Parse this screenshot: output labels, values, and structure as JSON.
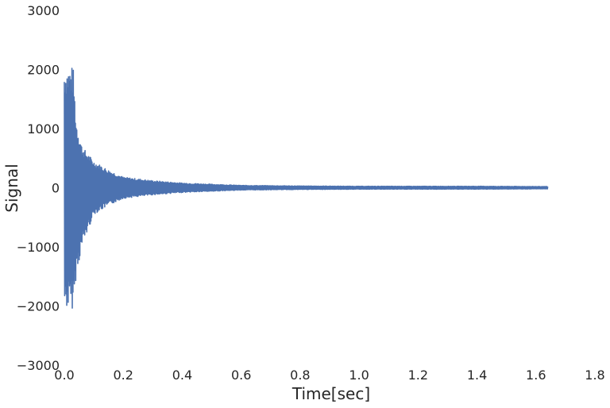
{
  "chart_data": {
    "type": "line",
    "title": "",
    "xlabel": "Time[sec]",
    "ylabel": "Signal",
    "xlim": [
      0.0,
      1.8
    ],
    "ylim": [
      -3000,
      3000
    ],
    "x_ticks": [
      "0.0",
      "0.2",
      "0.4",
      "0.6",
      "0.8",
      "1.0",
      "1.2",
      "1.4",
      "1.6",
      "1.8"
    ],
    "y_ticks": [
      "3000",
      "2000",
      "1000",
      "0",
      "−1000",
      "−2000",
      "−3000"
    ],
    "grid": false,
    "series_color": "#4c72b0",
    "series": [
      {
        "description": "decaying oscillation envelope (approximate peak amplitude over time)",
        "x": [
          0.0,
          0.03,
          0.04,
          0.06,
          0.1,
          0.15,
          0.2,
          0.3,
          0.4,
          0.5,
          0.6,
          0.8,
          1.0,
          1.2,
          1.4,
          1.64
        ],
        "upper": [
          2050,
          2050,
          1150,
          700,
          450,
          300,
          180,
          120,
          80,
          60,
          40,
          30,
          25,
          25,
          25,
          20
        ],
        "lower": [
          -2050,
          -2050,
          -1500,
          -1000,
          -450,
          -300,
          -180,
          -120,
          -80,
          -60,
          -40,
          -30,
          -25,
          -25,
          -25,
          -20
        ]
      }
    ]
  }
}
